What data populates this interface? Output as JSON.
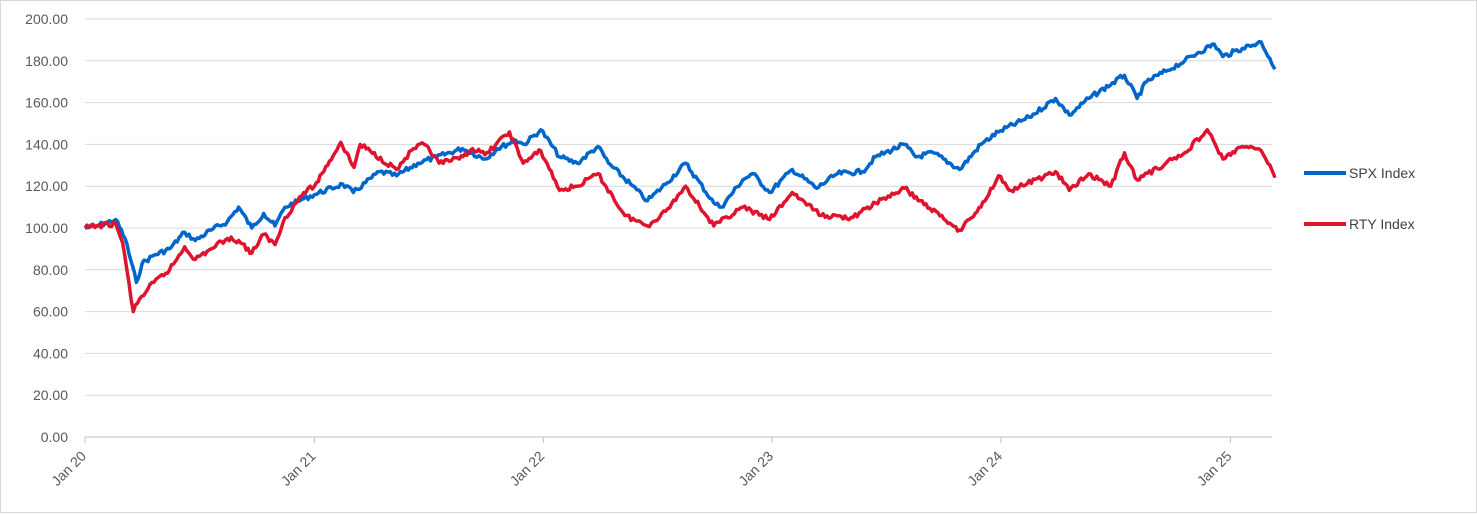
{
  "chart_data": {
    "type": "line",
    "title": "",
    "xlabel": "",
    "ylabel": "",
    "ylim": [
      0,
      200
    ],
    "y_ticks": [
      "0.00",
      "20.00",
      "40.00",
      "60.00",
      "80.00",
      "100.00",
      "120.00",
      "140.00",
      "160.00",
      "180.00",
      "200.00"
    ],
    "x_range": [
      "2020-01-01",
      "2025-03-15"
    ],
    "x_ticks": [
      {
        "label": "Jan 20",
        "date": "2020-01-01"
      },
      {
        "label": "Jan 21",
        "date": "2021-01-01"
      },
      {
        "label": "Jan 22",
        "date": "2022-01-01"
      },
      {
        "label": "Jan 23",
        "date": "2023-01-01"
      },
      {
        "label": "Jan 24",
        "date": "2024-01-01"
      },
      {
        "label": "Jan 25",
        "date": "2025-01-01"
      }
    ],
    "grid": "horizontal",
    "legend_position": "right",
    "series": [
      {
        "name": "SPX Index",
        "color": "#0066cc",
        "points": [
          [
            "2020-01-01",
            100
          ],
          [
            "2020-01-20",
            101
          ],
          [
            "2020-02-19",
            104
          ],
          [
            "2020-03-05",
            95
          ],
          [
            "2020-03-23",
            74
          ],
          [
            "2020-04-01",
            83
          ],
          [
            "2020-04-20",
            87
          ],
          [
            "2020-05-15",
            90
          ],
          [
            "2020-06-08",
            98
          ],
          [
            "2020-06-25",
            94
          ],
          [
            "2020-07-20",
            99
          ],
          [
            "2020-08-15",
            103
          ],
          [
            "2020-09-02",
            110
          ],
          [
            "2020-09-23",
            100
          ],
          [
            "2020-10-12",
            107
          ],
          [
            "2020-10-30",
            101
          ],
          [
            "2020-11-15",
            110
          ],
          [
            "2020-12-15",
            114
          ],
          [
            "2021-01-01",
            116
          ],
          [
            "2021-02-15",
            121
          ],
          [
            "2021-03-04",
            117
          ],
          [
            "2021-04-15",
            127
          ],
          [
            "2021-05-12",
            125
          ],
          [
            "2021-06-15",
            131
          ],
          [
            "2021-07-15",
            134
          ],
          [
            "2021-08-25",
            138
          ],
          [
            "2021-09-30",
            133
          ],
          [
            "2021-10-20",
            138
          ],
          [
            "2021-11-18",
            142
          ],
          [
            "2021-12-01",
            140
          ],
          [
            "2021-12-28",
            147
          ],
          [
            "2022-01-27",
            134
          ],
          [
            "2022-02-24",
            131
          ],
          [
            "2022-03-29",
            139
          ],
          [
            "2022-04-15",
            131
          ],
          [
            "2022-05-20",
            121
          ],
          [
            "2022-06-16",
            113
          ],
          [
            "2022-07-15",
            121
          ],
          [
            "2022-08-16",
            131
          ],
          [
            "2022-09-30",
            112
          ],
          [
            "2022-10-12",
            110
          ],
          [
            "2022-11-15",
            123
          ],
          [
            "2022-12-01",
            126
          ],
          [
            "2022-12-28",
            117
          ],
          [
            "2023-02-02",
            128
          ],
          [
            "2023-03-13",
            119
          ],
          [
            "2023-04-15",
            126
          ],
          [
            "2023-05-25",
            127
          ],
          [
            "2023-06-15",
            134
          ],
          [
            "2023-07-31",
            140
          ],
          [
            "2023-08-18",
            134
          ],
          [
            "2023-09-15",
            136
          ],
          [
            "2023-10-27",
            128
          ],
          [
            "2023-11-30",
            140
          ],
          [
            "2023-12-28",
            146
          ],
          [
            "2024-02-15",
            153
          ],
          [
            "2024-03-28",
            162
          ],
          [
            "2024-04-19",
            154
          ],
          [
            "2024-05-20",
            162
          ],
          [
            "2024-07-16",
            173
          ],
          [
            "2024-08-05",
            162
          ],
          [
            "2024-08-20",
            170
          ],
          [
            "2024-09-20",
            175
          ],
          [
            "2024-10-20",
            180
          ],
          [
            "2024-11-11",
            184
          ],
          [
            "2024-12-06",
            188
          ],
          [
            "2024-12-20",
            182
          ],
          [
            "2025-01-20",
            186
          ],
          [
            "2025-02-19",
            189
          ],
          [
            "2025-03-05",
            181
          ],
          [
            "2025-03-13",
            176
          ]
        ]
      },
      {
        "name": "RTY Index",
        "color": "#e0132f",
        "points": [
          [
            "2020-01-01",
            100
          ],
          [
            "2020-01-20",
            101
          ],
          [
            "2020-02-19",
            102
          ],
          [
            "2020-03-01",
            93
          ],
          [
            "2020-03-18",
            60
          ],
          [
            "2020-03-28",
            66
          ],
          [
            "2020-04-20",
            74
          ],
          [
            "2020-05-15",
            80
          ],
          [
            "2020-06-08",
            91
          ],
          [
            "2020-06-25",
            85
          ],
          [
            "2020-07-20",
            90
          ],
          [
            "2020-08-15",
            95
          ],
          [
            "2020-09-02",
            94
          ],
          [
            "2020-09-23",
            88
          ],
          [
            "2020-10-12",
            97
          ],
          [
            "2020-10-30",
            92
          ],
          [
            "2020-11-15",
            105
          ],
          [
            "2020-12-15",
            117
          ],
          [
            "2021-01-01",
            120
          ],
          [
            "2021-01-25",
            132
          ],
          [
            "2021-02-12",
            141
          ],
          [
            "2021-03-05",
            129
          ],
          [
            "2021-03-15",
            140
          ],
          [
            "2021-05-12",
            128
          ],
          [
            "2021-06-08",
            138
          ],
          [
            "2021-06-25",
            140
          ],
          [
            "2021-07-19",
            131
          ],
          [
            "2021-08-20",
            133
          ],
          [
            "2021-09-10",
            138
          ],
          [
            "2021-09-30",
            135
          ],
          [
            "2021-11-08",
            146
          ],
          [
            "2021-11-30",
            131
          ],
          [
            "2021-12-28",
            137
          ],
          [
            "2022-01-27",
            118
          ],
          [
            "2022-02-24",
            120
          ],
          [
            "2022-03-29",
            126
          ],
          [
            "2022-05-11",
            106
          ],
          [
            "2022-06-16",
            101
          ],
          [
            "2022-07-15",
            108
          ],
          [
            "2022-08-16",
            120
          ],
          [
            "2022-09-30",
            101
          ],
          [
            "2022-11-15",
            110
          ],
          [
            "2022-12-28",
            104
          ],
          [
            "2023-02-02",
            117
          ],
          [
            "2023-03-20",
            106
          ],
          [
            "2023-05-10",
            105
          ],
          [
            "2023-06-15",
            112
          ],
          [
            "2023-07-31",
            119
          ],
          [
            "2023-08-25",
            113
          ],
          [
            "2023-10-27",
            99
          ],
          [
            "2023-11-30",
            110
          ],
          [
            "2023-12-28",
            125
          ],
          [
            "2024-01-17",
            118
          ],
          [
            "2024-03-28",
            127
          ],
          [
            "2024-04-19",
            118
          ],
          [
            "2024-05-20",
            126
          ],
          [
            "2024-06-24",
            120
          ],
          [
            "2024-07-16",
            136
          ],
          [
            "2024-08-05",
            123
          ],
          [
            "2024-09-20",
            131
          ],
          [
            "2024-10-20",
            136
          ],
          [
            "2024-11-25",
            147
          ],
          [
            "2024-12-20",
            133
          ],
          [
            "2025-01-20",
            139
          ],
          [
            "2025-02-19",
            137
          ],
          [
            "2025-03-05",
            130
          ],
          [
            "2025-03-13",
            124
          ]
        ]
      }
    ]
  }
}
